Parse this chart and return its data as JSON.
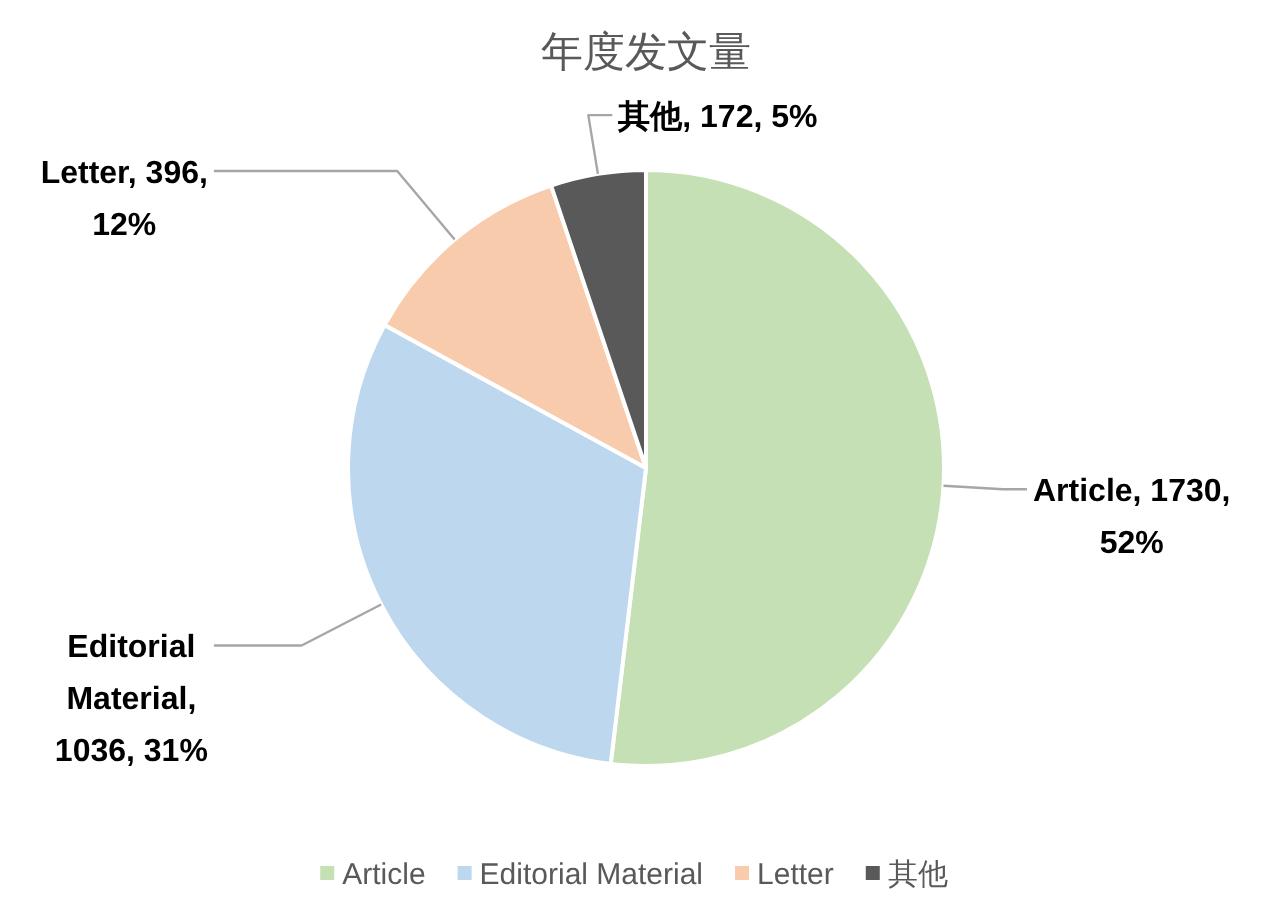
{
  "chart_data": {
    "type": "pie",
    "title": "年度发文量",
    "categories": [
      "Article",
      "Editorial Material",
      "Letter",
      "其他"
    ],
    "values": [
      1730,
      1036,
      396,
      172
    ],
    "colors": [
      "#c5e0b4",
      "#bdd7ee",
      "#f8cbad",
      "#595959"
    ],
    "value_labels": [
      "Article, 1730, 52%",
      "Editorial Material, 1036, 31%",
      "Letter, 396, 12%",
      "其他, 172, 5%"
    ],
    "legend": "bottom"
  }
}
